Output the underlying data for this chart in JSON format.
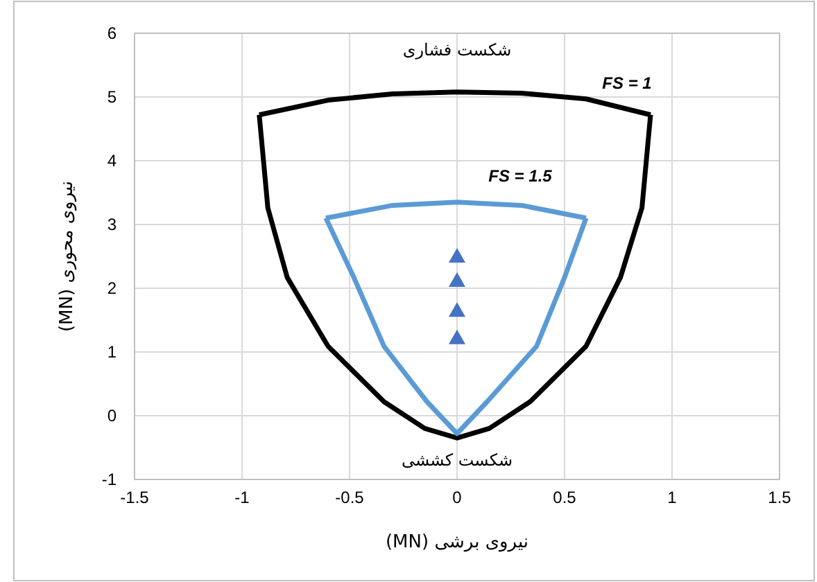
{
  "chart_data": {
    "type": "line",
    "xlabel": "نیروی برشی (MN)",
    "ylabel": "نیروی محوری (MN)",
    "xlim": [
      -1.5,
      1.5
    ],
    "xticks": [
      -1.5,
      -1,
      -0.5,
      0,
      0.5,
      1,
      1.5
    ],
    "ylim": [
      -1,
      6
    ],
    "yticks": [
      -1,
      0,
      1,
      2,
      3,
      4,
      5,
      6
    ],
    "grid": true,
    "series": [
      {
        "color": "#000000",
        "marker": "none",
        "x": [
          -0.92,
          -0.6,
          -0.3,
          0,
          0.3,
          0.6,
          0.9
        ],
        "values": [
          4.72,
          4.95,
          5.05,
          5.08,
          5.06,
          4.97,
          4.72
        ]
      },
      {
        "color": "#000000",
        "marker": "none",
        "x": [
          -0.92,
          -0.88,
          -0.79,
          -0.6,
          -0.34,
          -0.15,
          0,
          0.15,
          0.34,
          0.6,
          0.76,
          0.86,
          0.9
        ],
        "values": [
          4.72,
          3.26,
          2.17,
          1.09,
          0.22,
          -0.2,
          -0.35,
          -0.2,
          0.22,
          1.09,
          2.17,
          3.26,
          4.72
        ]
      },
      {
        "color": "#5b9bd5",
        "marker": "none",
        "x": [
          -0.61,
          -0.3,
          0,
          0.3,
          0.6
        ],
        "values": [
          3.1,
          3.3,
          3.35,
          3.3,
          3.1
        ]
      },
      {
        "color": "#5b9bd5",
        "marker": "none",
        "x": [
          -0.61,
          -0.48,
          -0.34,
          -0.14,
          0,
          0.14,
          0.37,
          0.5,
          0.6
        ],
        "values": [
          3.1,
          2.17,
          1.09,
          0.22,
          -0.28,
          0.22,
          1.09,
          2.17,
          3.1
        ]
      },
      {
        "type": "scatter",
        "color": "#4472c4",
        "marker": "triangle",
        "x": [
          0,
          0,
          0,
          0
        ],
        "values": [
          2.5,
          2.12,
          1.65,
          1.22
        ]
      }
    ],
    "annotations": [
      "شکست فشاری",
      "FS = 1",
      "FS = 1.5",
      "شکست کششی"
    ]
  }
}
